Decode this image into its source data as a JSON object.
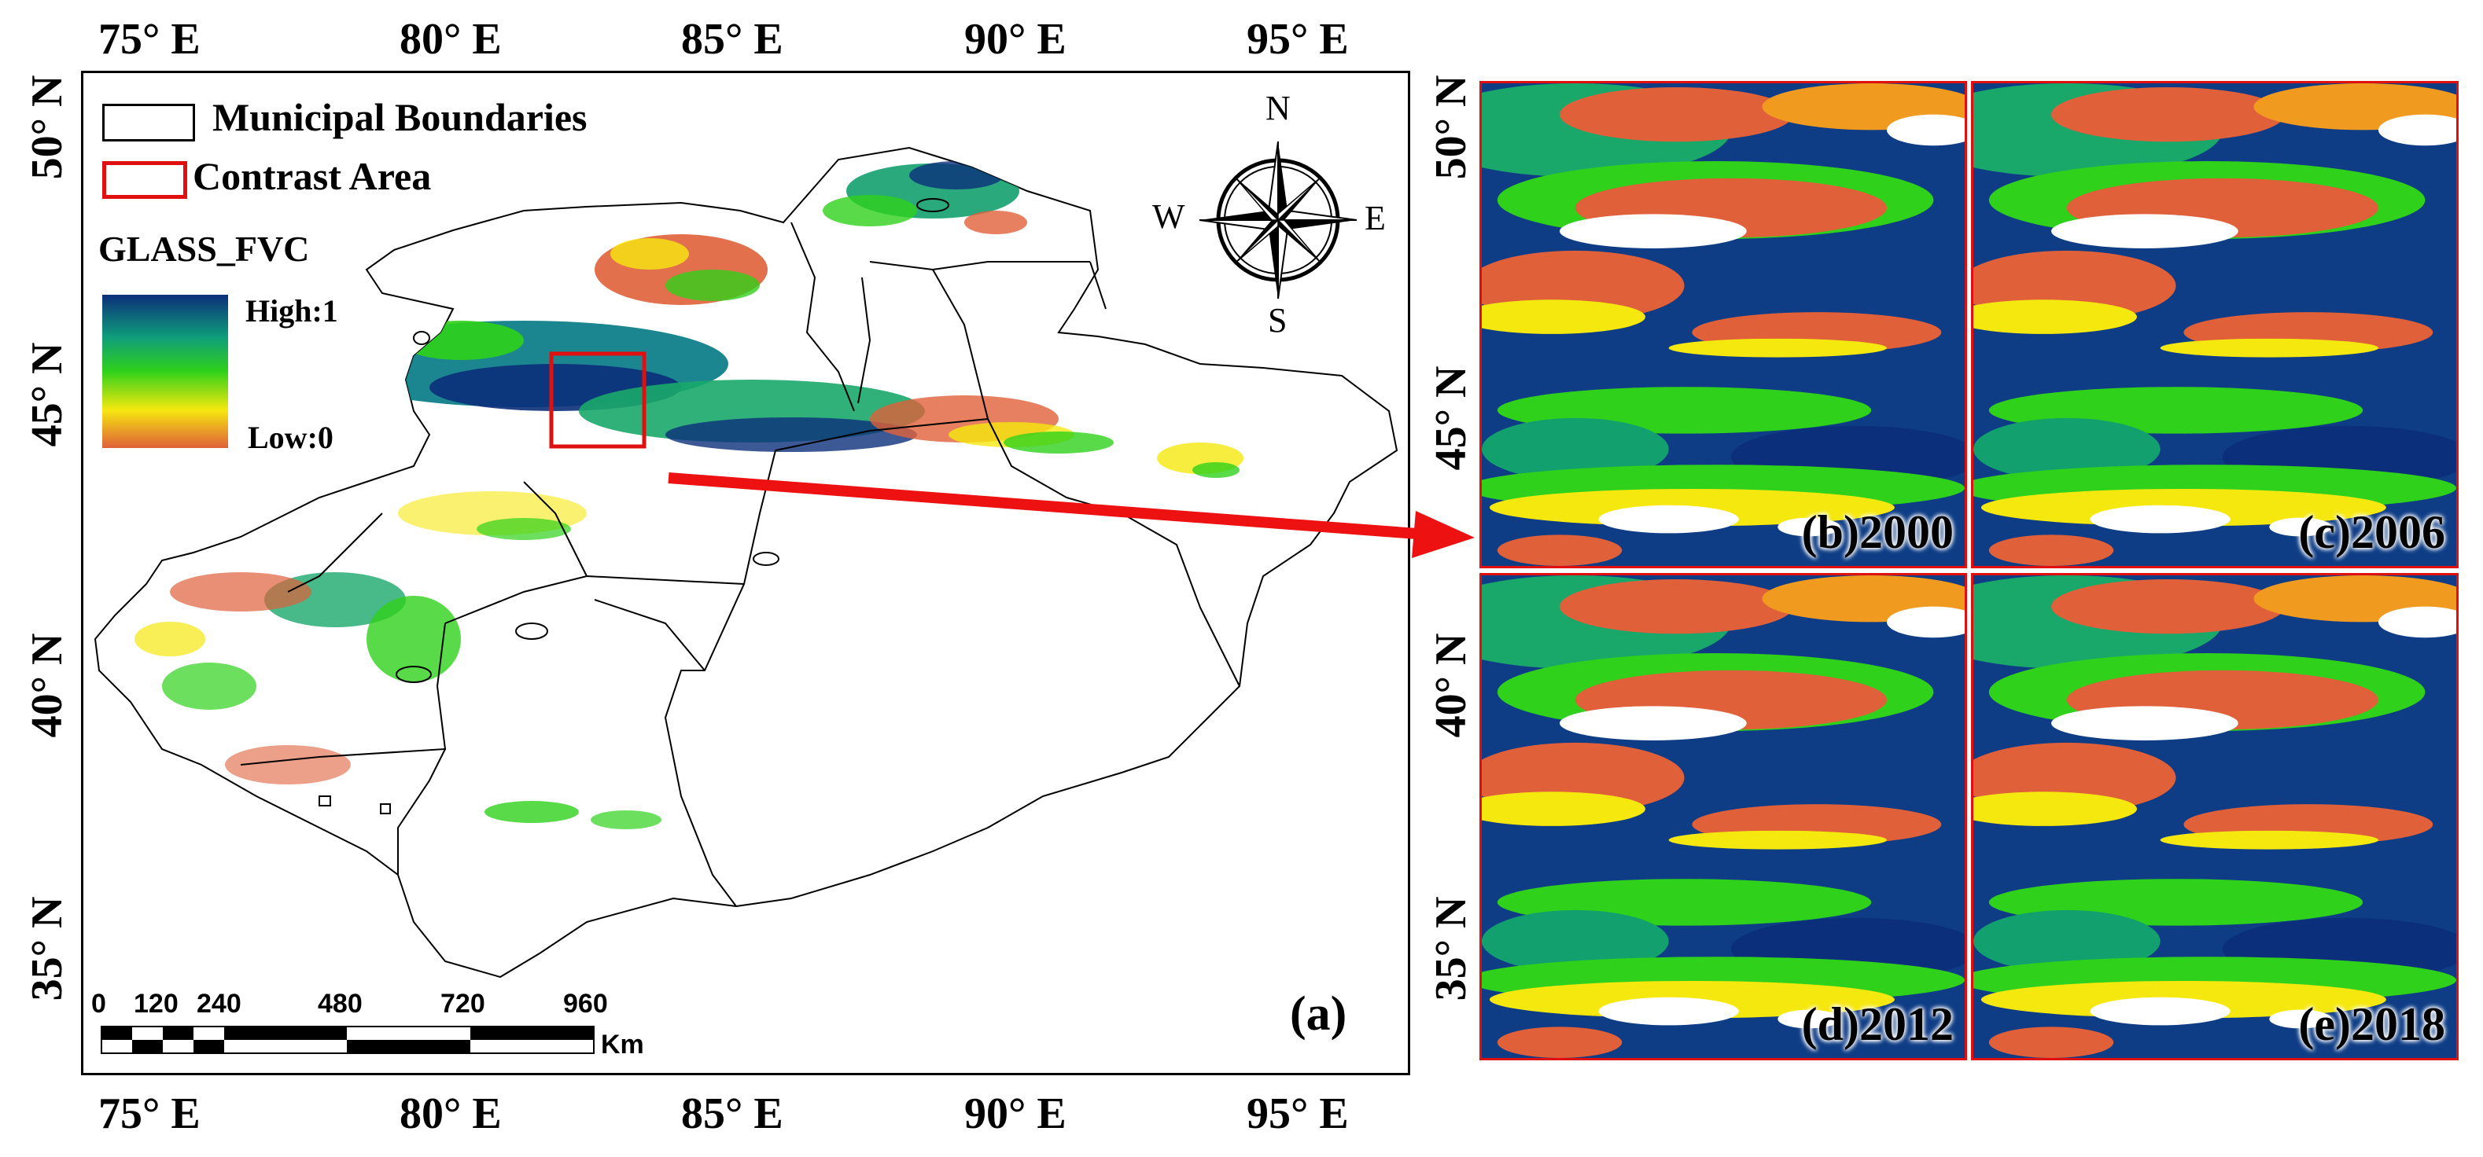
{
  "longitude_ticks": [
    "75° E",
    "80° E",
    "85° E",
    "90° E",
    "95° E"
  ],
  "latitude_ticks": [
    "50° N",
    "45° N",
    "40° N",
    "35° N"
  ],
  "inset_latitude_ticks": [
    "50° N",
    "45° N",
    "40° N",
    "35° N"
  ],
  "legend": {
    "boundaries_label": "Municipal Boundaries",
    "contrast_label": "Contrast Area",
    "variable_title": "GLASS_FVC",
    "high_label": "High:1",
    "low_label": "Low:0",
    "colors": {
      "high": "#0b2f7a",
      "mid_high": "#0f9f7a",
      "mid": "#2fd11a",
      "mid_low": "#f5e80f",
      "low": "#e0603a"
    }
  },
  "compass": {
    "n": "N",
    "s": "S",
    "e": "E",
    "w": "W"
  },
  "scale_bar": {
    "ticks": [
      "0",
      "120",
      "240",
      "480",
      "720",
      "960"
    ],
    "unit": "Km"
  },
  "main_label": "(a)",
  "panels": [
    {
      "label": "(b)2000"
    },
    {
      "label": "(c)2006"
    },
    {
      "label": "(d)2012"
    },
    {
      "label": "(e)2018"
    }
  ],
  "colors": {
    "boundary": "#000000",
    "contrast_box": "#e01010",
    "arrow": "#ee1111"
  }
}
